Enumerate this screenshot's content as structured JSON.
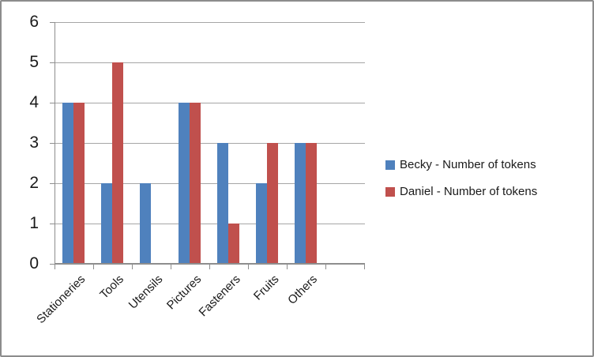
{
  "chart_data": {
    "type": "bar",
    "categories": [
      "Stationeries",
      "Tools",
      "Utensils",
      "Pictures",
      "Fasteners",
      "Fruits",
      "Others"
    ],
    "series": [
      {
        "name": "Becky - Number of tokens",
        "color": "#4F81BD",
        "values": [
          4,
          2,
          2,
          4,
          3,
          2,
          3
        ]
      },
      {
        "name": "Daniel - Number of tokens",
        "color": "#C0504D",
        "values": [
          4,
          5,
          0,
          4,
          1,
          3,
          3
        ]
      }
    ],
    "title": "",
    "xlabel": "",
    "ylabel": "",
    "ylim": [
      0,
      6
    ],
    "yticks": [
      0,
      1,
      2,
      3,
      4,
      5,
      6
    ],
    "grid": true,
    "legend_position": "right"
  },
  "colors": {
    "gridline": "#A6A6A6",
    "axis": "#8E8E8E",
    "frame_border": "#8C8C8C",
    "text": "#1A1A1A",
    "background": "#FFFFFF"
  }
}
